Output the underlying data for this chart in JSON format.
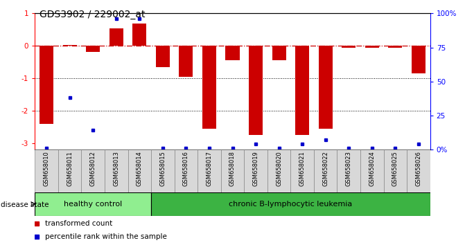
{
  "title": "GDS3902 / 229002_at",
  "samples": [
    "GSM658010",
    "GSM658011",
    "GSM658012",
    "GSM658013",
    "GSM658014",
    "GSM658015",
    "GSM658016",
    "GSM658017",
    "GSM658018",
    "GSM658019",
    "GSM658020",
    "GSM658021",
    "GSM658022",
    "GSM658023",
    "GSM658024",
    "GSM658025",
    "GSM658026"
  ],
  "red_values": [
    -2.4,
    0.02,
    -0.18,
    0.55,
    0.68,
    -0.65,
    -0.95,
    -2.55,
    -0.45,
    -2.75,
    -0.45,
    -2.75,
    -2.55,
    -0.05,
    -0.05,
    -0.05,
    -0.85
  ],
  "blue_percentiles": [
    1,
    38,
    14,
    96,
    96,
    1,
    1,
    1,
    1,
    4,
    1,
    4,
    7,
    1,
    1,
    1,
    4
  ],
  "healthy_control_count": 5,
  "ylim_left": [
    -3.2,
    1.0
  ],
  "ylim_right": [
    0,
    100
  ],
  "right_ticks": [
    0,
    25,
    50,
    75,
    100
  ],
  "right_tick_labels": [
    "0%",
    "25",
    "50",
    "75",
    "100%"
  ],
  "left_ticks": [
    -3,
    -2,
    -1,
    0,
    1
  ],
  "left_tick_labels": [
    "-3",
    "-2",
    "-1",
    "0",
    "1"
  ],
  "hline_y": 0.0,
  "dotted_lines": [
    -1.0,
    -2.0
  ],
  "bar_color": "#CC0000",
  "dot_color": "#0000CC",
  "hline_color": "#CC0000",
  "healthy_fill": "#90EE90",
  "leukemia_fill": "#3CB343",
  "bg_color": "#FFFFFF",
  "sample_box_color": "#D8D8D8",
  "title_fontsize": 10,
  "tick_fontsize": 7.5,
  "label_fontsize": 8,
  "disease_state_label": "disease state",
  "group1_label": "healthy control",
  "group2_label": "chronic B-lymphocytic leukemia",
  "legend1_label": "transformed count",
  "legend2_label": "percentile rank within the sample",
  "bar_width": 0.6
}
